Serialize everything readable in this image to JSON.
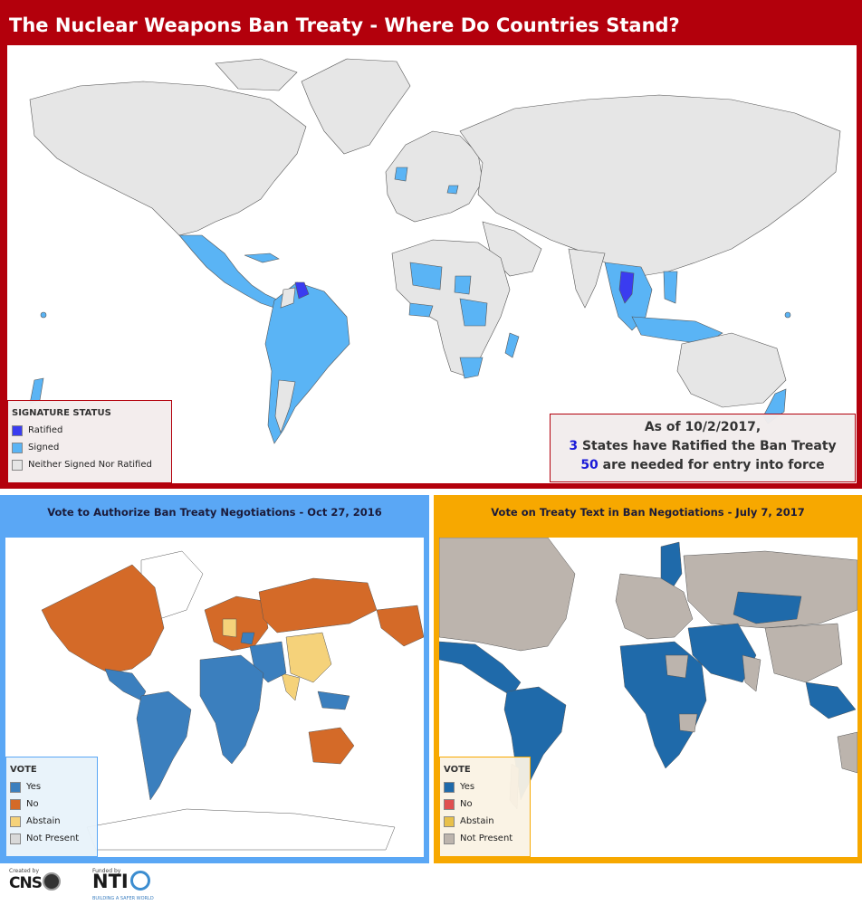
{
  "title": "The Nuclear Weapons Ban Treaty - Where Do Countries Stand?",
  "colors": {
    "header_bg": "#b3000c",
    "ratified": "#3a3cf0",
    "signed": "#5ab4f5",
    "neither": "#e6e6e6",
    "vote_yes": "#2b6fad",
    "vote_yes_alt": "#3b7fbe",
    "vote_no": "#d46a28",
    "vote_no_alt": "#e05050",
    "vote_abstain": "#f5d27a",
    "vote_abstain_alt": "#e8c04a",
    "not_present": "#d9d9d9",
    "not_present_alt": "#bcb4ad",
    "left_panel_bg": "#5aa7f5",
    "right_panel_bg": "#f7a800"
  },
  "top_map": {
    "legend": {
      "title": "SIGNATURE STATUS",
      "items": [
        {
          "label": "Ratified",
          "color": "#3a3cf0"
        },
        {
          "label": "Signed",
          "color": "#5ab4f5"
        },
        {
          "label": "Neither Signed Nor Ratified",
          "color": "#e6e6e6"
        }
      ]
    },
    "status": {
      "line1": "As of 10/2/2017,",
      "ratified_count": "3",
      "line2_text": " States have Ratified the Ban Treaty",
      "needed_count": "50",
      "line3_text": " are needed for entry into force"
    }
  },
  "left_map": {
    "title": "Vote to Authorize Ban Treaty Negotiations - Oct 27, 2016",
    "legend": {
      "title": "VOTE",
      "items": [
        {
          "label": "Yes",
          "color": "#3b7fbe"
        },
        {
          "label": "No",
          "color": "#d46a28"
        },
        {
          "label": "Abstain",
          "color": "#f5d27a"
        },
        {
          "label": "Not Present",
          "color": "#d9d9d9"
        }
      ]
    }
  },
  "right_map": {
    "title": "Vote on Treaty Text in Ban Negotiations - July 7, 2017",
    "legend": {
      "title": "VOTE",
      "items": [
        {
          "label": "Yes",
          "color": "#1f6aaa"
        },
        {
          "label": "No",
          "color": "#e05050"
        },
        {
          "label": "Abstain",
          "color": "#e8c04a"
        },
        {
          "label": "Not Present",
          "color": "#bcb4ad"
        }
      ]
    }
  },
  "footer": {
    "created_by": "Created by",
    "cns": "CNS",
    "funded_by": "Funded by",
    "nti": "NTI",
    "nti_tagline": "BUILDING A SAFER WORLD"
  }
}
